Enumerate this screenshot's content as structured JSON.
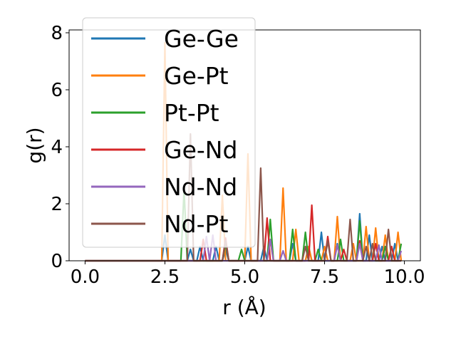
{
  "chart_data": {
    "type": "line",
    "title": "",
    "xlabel": "r (Å)",
    "ylabel": "g(r)",
    "xlim": [
      -0.5,
      10.5
    ],
    "ylim": [
      0,
      8.1
    ],
    "xticks": [
      0.0,
      2.5,
      5.0,
      7.5,
      10.0
    ],
    "xtick_labels": [
      "0.0",
      "2.5",
      "5.0",
      "7.5",
      "10.0"
    ],
    "yticks": [
      0,
      2,
      4,
      6,
      8
    ],
    "ytick_labels": [
      "0",
      "2",
      "4",
      "6",
      "8"
    ],
    "grid": false,
    "legend_position": "upper-left",
    "x_range": [
      0,
      9.9
    ],
    "x_step": 0.1,
    "series": [
      {
        "name": "Ge-Ge",
        "color": "#1f77b4",
        "peaks": [
          [
            2.5,
            0.9
          ],
          [
            3.3,
            0.4
          ],
          [
            3.6,
            0.5
          ],
          [
            4.1,
            0.5
          ],
          [
            4.4,
            0.4
          ],
          [
            5.1,
            0.5
          ],
          [
            5.6,
            0.5
          ],
          [
            6.5,
            0.6
          ],
          [
            7.0,
            0.5
          ],
          [
            7.4,
            1.0
          ],
          [
            7.9,
            0.6
          ],
          [
            8.6,
            1.65
          ],
          [
            8.9,
            0.9
          ],
          [
            9.3,
            0.5
          ],
          [
            9.7,
            0.6
          ]
        ]
      },
      {
        "name": "Ge-Pt",
        "color": "#ff7f0e",
        "peaks": [
          [
            2.5,
            7.65
          ],
          [
            4.3,
            2.3
          ],
          [
            5.1,
            3.75
          ],
          [
            5.8,
            0.7
          ],
          [
            6.2,
            2.55
          ],
          [
            6.6,
            1.1
          ],
          [
            7.0,
            0.5
          ],
          [
            7.5,
            0.5
          ],
          [
            7.9,
            1.55
          ],
          [
            8.4,
            0.6
          ],
          [
            8.8,
            1.2
          ],
          [
            9.1,
            1.15
          ],
          [
            9.4,
            0.9
          ],
          [
            9.8,
            1.0
          ]
        ]
      },
      {
        "name": "Pt-Pt",
        "color": "#2ca02c",
        "peaks": [
          [
            3.1,
            2.5
          ],
          [
            4.4,
            0.6
          ],
          [
            4.9,
            0.4
          ],
          [
            5.8,
            1.45
          ],
          [
            6.5,
            1.1
          ],
          [
            6.9,
            1.0
          ],
          [
            7.3,
            0.4
          ],
          [
            8.0,
            0.75
          ],
          [
            8.6,
            1.4
          ],
          [
            9.4,
            0.5
          ],
          [
            9.9,
            0.6
          ]
        ]
      },
      {
        "name": "Ge-Nd",
        "color": "#d62728",
        "peaks": [
          [
            3.7,
            0.75
          ],
          [
            4.4,
            0.8
          ],
          [
            5.7,
            1.5
          ],
          [
            7.1,
            1.95
          ],
          [
            7.6,
            0.85
          ],
          [
            8.1,
            0.4
          ],
          [
            8.6,
            0.7
          ],
          [
            9.1,
            0.6
          ],
          [
            9.6,
            0.5
          ]
        ]
      },
      {
        "name": "Nd-Nd",
        "color": "#9467bd",
        "peaks": [
          [
            3.8,
            0.85
          ],
          [
            4.0,
            0.9
          ],
          [
            5.8,
            0.75
          ],
          [
            6.2,
            0.35
          ],
          [
            7.9,
            0.55
          ],
          [
            8.6,
            0.6
          ],
          [
            9.2,
            0.55
          ],
          [
            9.9,
            0.35
          ]
        ]
      },
      {
        "name": "Nd-Pt",
        "color": "#8c564b",
        "peaks": [
          [
            3.3,
            4.45
          ],
          [
            4.4,
            0.7
          ],
          [
            5.5,
            3.25
          ],
          [
            6.9,
            0.5
          ],
          [
            7.6,
            0.7
          ],
          [
            8.3,
            1.45
          ],
          [
            8.8,
            0.5
          ],
          [
            9.0,
            0.6
          ],
          [
            9.5,
            1.1
          ]
        ]
      }
    ]
  }
}
